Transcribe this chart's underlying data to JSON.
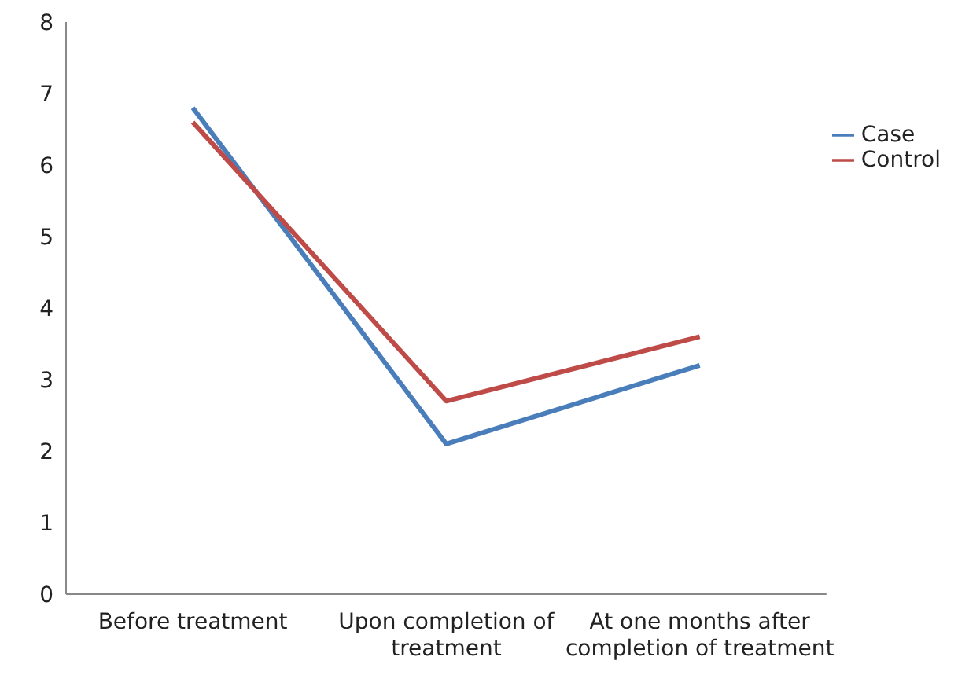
{
  "chart_data": {
    "type": "line",
    "categories": [
      "Before treatment",
      "Upon completion of treatment",
      "At one months after completion of treatment"
    ],
    "series": [
      {
        "name": "Case",
        "color": "#4a7ebb",
        "values": [
          6.8,
          2.1,
          3.2
        ]
      },
      {
        "name": "Control",
        "color": "#be4b48",
        "values": [
          6.6,
          2.7,
          3.6
        ]
      }
    ],
    "ylim": [
      0,
      8
    ],
    "yticks": [
      0,
      1,
      2,
      3,
      4,
      5,
      6,
      7,
      8
    ],
    "legend": "top right",
    "marker": "none",
    "line_style": "solid"
  }
}
